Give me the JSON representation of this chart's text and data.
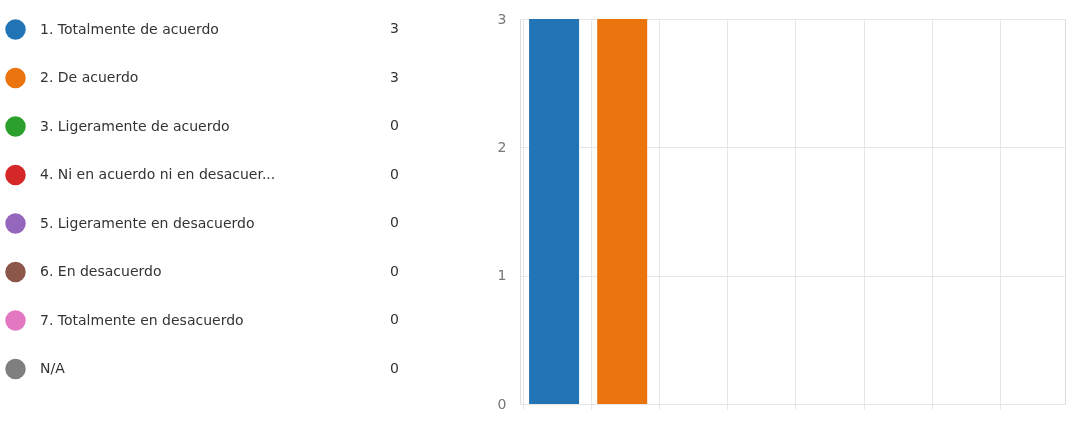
{
  "chart_data": {
    "type": "bar",
    "categories": [
      null
    ],
    "series": [
      {
        "name": "1. Totalmente de acuerdo",
        "color": "#2274b5",
        "values": [
          3
        ]
      },
      {
        "name": "2. De acuerdo",
        "color": "#eb740f",
        "values": [
          3
        ]
      },
      {
        "name": "3.  Ligeramente de acuerdo",
        "color": "#2ca02c",
        "values": [
          0
        ]
      },
      {
        "name": "4. Ni en acuerdo ni en desacuer...",
        "color": "#d62728",
        "values": [
          0
        ]
      },
      {
        "name": "5. Ligeramente en desacuerdo",
        "color": "#9467bd",
        "values": [
          0
        ]
      },
      {
        "name": "6. En desacuerdo",
        "color": "#8c564b",
        "values": [
          0
        ]
      },
      {
        "name": "7. Totalmente en desacuerdo",
        "color": "#e377c2",
        "values": [
          0
        ]
      },
      {
        "name": "N/A",
        "color": "#7f7f7f",
        "values": [
          0
        ]
      }
    ],
    "ylim": [
      0,
      3
    ],
    "yticks": [
      0,
      1,
      2,
      3
    ],
    "grid": true,
    "legend": "left",
    "tick_labels": "y",
    "annotations": [
      "3",
      "3",
      "0",
      "0",
      "0",
      "0",
      "0",
      "0"
    ]
  }
}
